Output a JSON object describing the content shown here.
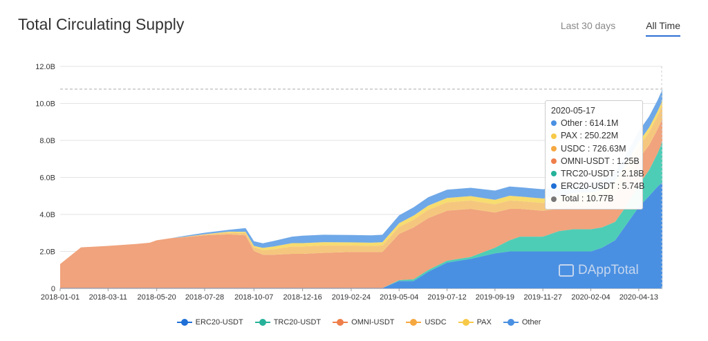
{
  "header": {
    "title": "Total Circulating Supply",
    "tabs": [
      {
        "label": "Last 30 days",
        "active": false
      },
      {
        "label": "All Time",
        "active": true
      }
    ]
  },
  "colors": {
    "ERC20-USDT": "#4a90e2",
    "TRC20-USDT": "#4ecdb6",
    "OMNI-USDT": "#f0a37c",
    "USDC": "#f5c77e",
    "PAX": "#f7dc6f",
    "Other": "#6fa8e8",
    "Total": "#7f7f7f"
  },
  "watermark": "DAppTotal",
  "tooltip": {
    "date": "2020-05-17",
    "rows": [
      {
        "label": "Other : 614.1M",
        "color": "#4a90e2"
      },
      {
        "label": "PAX : 250.22M",
        "color": "#f7c948"
      },
      {
        "label": "USDC : 726.63M",
        "color": "#f5a840"
      },
      {
        "label": "OMNI-USDT : 1.25B",
        "color": "#ee7f4a"
      },
      {
        "label": "TRC20-USDT : 2.18B",
        "color": "#26b29a"
      },
      {
        "label": "ERC20-USDT : 5.74B",
        "color": "#1f6fd6"
      },
      {
        "label": "Total : 10.77B",
        "color": "#777777"
      }
    ]
  },
  "legend": [
    {
      "label": "ERC20-USDT",
      "color": "#1f6fd6"
    },
    {
      "label": "TRC20-USDT",
      "color": "#26b29a"
    },
    {
      "label": "OMNI-USDT",
      "color": "#ee7f4a"
    },
    {
      "label": "USDC",
      "color": "#f5a840"
    },
    {
      "label": "PAX",
      "color": "#f7c948"
    },
    {
      "label": "Other",
      "color": "#4a90e2"
    }
  ],
  "chart_data": {
    "type": "area",
    "title": "Total Circulating Supply",
    "xlabel": "",
    "ylabel": "",
    "stacked": true,
    "ylim": [
      0,
      12
    ],
    "yticks": [
      0,
      2,
      4,
      6,
      8,
      10,
      12
    ],
    "ytick_labels": [
      "0",
      "2.0B",
      "4.0B",
      "6.0B",
      "8.0B",
      "10.0B",
      "12.0B"
    ],
    "xlim": [
      "2018-01-01",
      "2020-05-17"
    ],
    "xtick_labels": [
      "2018-01-01",
      "2018-03-11",
      "2018-05-20",
      "2018-07-28",
      "2018-10-07",
      "2018-12-16",
      "2019-02-24",
      "2019-05-04",
      "2019-07-12",
      "2019-09-19",
      "2019-11-27",
      "2020-02-04",
      "2020-04-13"
    ],
    "grid": true,
    "reference_line": 10.77,
    "value_unit": "B",
    "x": [
      "2018-01-01",
      "2018-01-11",
      "2018-01-31",
      "2018-03-11",
      "2018-04-20",
      "2018-05-10",
      "2018-05-20",
      "2018-06-10",
      "2018-07-01",
      "2018-07-28",
      "2018-09-01",
      "2018-09-25",
      "2018-10-07",
      "2018-10-20",
      "2018-11-05",
      "2018-12-01",
      "2018-12-16",
      "2019-01-15",
      "2019-02-24",
      "2019-03-25",
      "2019-04-10",
      "2019-05-04",
      "2019-05-25",
      "2019-06-15",
      "2019-07-12",
      "2019-08-15",
      "2019-09-19",
      "2019-10-10",
      "2019-10-25",
      "2019-11-27",
      "2019-12-20",
      "2020-01-10",
      "2020-02-04",
      "2020-02-20",
      "2020-03-10",
      "2020-03-25",
      "2020-04-13",
      "2020-04-28",
      "2020-05-10",
      "2020-05-17"
    ],
    "series": [
      {
        "name": "ERC20-USDT",
        "values": [
          0.02,
          0.02,
          0.02,
          0.02,
          0.02,
          0.02,
          0.02,
          0.02,
          0.02,
          0.02,
          0.02,
          0.02,
          0.02,
          0.02,
          0.02,
          0.02,
          0.02,
          0.02,
          0.02,
          0.02,
          0.02,
          0.4,
          0.4,
          0.9,
          1.4,
          1.6,
          1.9,
          2.0,
          2.0,
          2.0,
          2.0,
          2.0,
          2.0,
          2.2,
          2.6,
          3.4,
          4.4,
          5.0,
          5.5,
          5.74
        ]
      },
      {
        "name": "TRC20-USDT",
        "values": [
          0,
          0,
          0,
          0,
          0,
          0,
          0,
          0,
          0,
          0,
          0,
          0,
          0,
          0,
          0,
          0,
          0,
          0,
          0,
          0,
          0,
          0.05,
          0.1,
          0.1,
          0.1,
          0.1,
          0.3,
          0.6,
          0.8,
          0.8,
          1.1,
          1.2,
          1.2,
          1.1,
          1.0,
          1.0,
          1.2,
          1.4,
          1.8,
          2.18
        ]
      },
      {
        "name": "OMNI-USDT",
        "values": [
          1.3,
          1.6,
          2.2,
          2.28,
          2.38,
          2.45,
          2.58,
          2.7,
          2.75,
          2.85,
          2.9,
          2.85,
          2.0,
          1.8,
          1.8,
          1.85,
          1.85,
          1.9,
          1.95,
          1.95,
          1.95,
          2.5,
          2.8,
          2.8,
          2.7,
          2.6,
          1.9,
          1.7,
          1.5,
          1.4,
          1.2,
          1.3,
          1.3,
          1.3,
          1.4,
          1.4,
          1.4,
          1.35,
          1.3,
          1.25
        ]
      },
      {
        "name": "USDC",
        "values": [
          0,
          0,
          0,
          0,
          0,
          0,
          0,
          0,
          0.03,
          0.05,
          0.1,
          0.12,
          0.2,
          0.25,
          0.3,
          0.4,
          0.4,
          0.4,
          0.35,
          0.33,
          0.35,
          0.38,
          0.42,
          0.45,
          0.45,
          0.45,
          0.45,
          0.45,
          0.42,
          0.42,
          0.42,
          0.42,
          0.45,
          0.48,
          0.55,
          0.62,
          0.66,
          0.7,
          0.72,
          0.73
        ]
      },
      {
        "name": "PAX",
        "values": [
          0,
          0,
          0,
          0,
          0,
          0,
          0,
          0,
          0,
          0.01,
          0.05,
          0.07,
          0.08,
          0.12,
          0.15,
          0.18,
          0.18,
          0.18,
          0.17,
          0.17,
          0.18,
          0.2,
          0.22,
          0.23,
          0.24,
          0.24,
          0.24,
          0.26,
          0.25,
          0.24,
          0.24,
          0.24,
          0.24,
          0.24,
          0.24,
          0.24,
          0.25,
          0.25,
          0.25,
          0.25
        ]
      },
      {
        "name": "Other",
        "values": [
          0,
          0,
          0,
          0,
          0,
          0,
          0,
          0,
          0.05,
          0.08,
          0.1,
          0.2,
          0.25,
          0.25,
          0.3,
          0.35,
          0.4,
          0.4,
          0.4,
          0.4,
          0.4,
          0.42,
          0.45,
          0.45,
          0.45,
          0.45,
          0.5,
          0.5,
          0.5,
          0.5,
          0.5,
          0.5,
          0.55,
          0.55,
          0.55,
          0.55,
          0.58,
          0.6,
          0.6,
          0.61
        ]
      }
    ]
  }
}
